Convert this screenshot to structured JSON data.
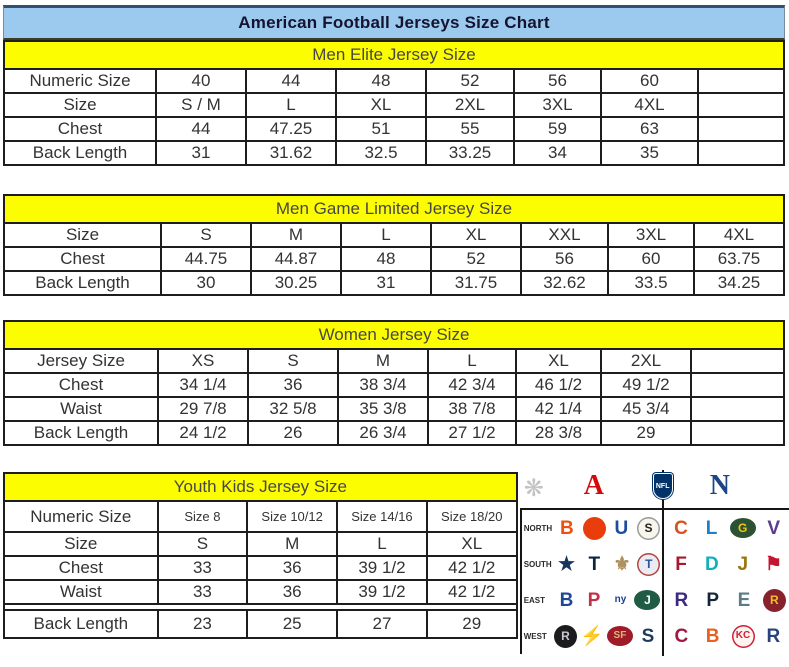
{
  "page": {
    "title": "American Football Jerseys Size Chart"
  },
  "colors": {
    "title_bar_blue": "#9cc9ee",
    "section_header_yellow": "#fdfd02",
    "afc_red": "#d50a0a",
    "nfl_blue": "#013369"
  },
  "tables": [
    {
      "header": "Men Elite Jersey Size",
      "rows": [
        [
          "Numeric Size",
          "40",
          "44",
          "48",
          "52",
          "56",
          "60",
          ""
        ],
        [
          "Size",
          "S / M",
          "L",
          "XL",
          "2XL",
          "3XL",
          "4XL",
          ""
        ],
        [
          "Chest",
          "44",
          "47.25",
          "51",
          "55",
          "59",
          "63",
          ""
        ],
        [
          "Back Length",
          "31",
          "31.62",
          "32.5",
          "33.25",
          "34",
          "35",
          ""
        ]
      ]
    },
    {
      "header": "Men Game Limited Jersey Size",
      "rows": [
        [
          "Size",
          "S",
          "M",
          "L",
          "XL",
          "XXL",
          "3XL",
          "4XL"
        ],
        [
          "Chest",
          "44.75",
          "44.87",
          "48",
          "52",
          "56",
          "60",
          "63.75"
        ],
        [
          "Back Length",
          "30",
          "30.25",
          "31",
          "31.75",
          "32.62",
          "33.5",
          "34.25"
        ]
      ]
    },
    {
      "header": "Women Jersey Size",
      "rows": [
        [
          "Jersey Size",
          "XS",
          "S",
          "M",
          "L",
          "XL",
          "2XL",
          ""
        ],
        [
          "Chest",
          "34 1/4",
          "36",
          "38 3/4",
          "42 3/4",
          "46 1/2",
          "49 1/2",
          ""
        ],
        [
          "Waist",
          "29 7/8",
          "32 5/8",
          "35 3/8",
          "38 7/8",
          "42 1/4",
          "45 3/4",
          ""
        ],
        [
          "Back Length",
          "24 1/2",
          "26",
          "26 3/4",
          "27 1/2",
          "28 3/8",
          "29",
          ""
        ]
      ]
    },
    {
      "header": "Youth Kids Jersey Size",
      "rows": [
        [
          "Numeric Size",
          "Size 8",
          "Size 10/12",
          "Size 14/16",
          "Size 18/20"
        ],
        [
          "Size",
          "S",
          "M",
          "L",
          "XL"
        ],
        [
          "Chest",
          "33",
          "36",
          "39 1/2",
          "42 1/2"
        ],
        [
          "Waist",
          "33",
          "36",
          "39 1/2",
          "42 1/2"
        ],
        [
          "Back Length",
          "23",
          "25",
          "27",
          "29"
        ]
      ]
    }
  ],
  "logo_panel": {
    "conference_header": [
      {
        "name": "starburst-icon",
        "glyph": "❋",
        "shape": "glyph",
        "fg": "#c3c3c3"
      },
      {
        "name": "afc-logo",
        "glyph": "A",
        "shape": "conf",
        "fg": "#d50a0a"
      },
      {
        "name": "nfl-shield-icon",
        "glyph": "NFL",
        "shape": "shield",
        "bg": "#013369",
        "fg": "#ffffff"
      },
      {
        "name": "nfc-logo",
        "glyph": "N",
        "shape": "conf",
        "fg": "#1b4584"
      }
    ],
    "division_rows": [
      {
        "label": "NORTH",
        "afc": [
          {
            "name": "bengals",
            "glyph": "B",
            "shape": "glyph",
            "fg": "#ef5010"
          },
          {
            "name": "browns",
            "glyph": "",
            "shape": "circle",
            "bg": "#ea3d0c",
            "fg": "#ffffff"
          },
          {
            "name": "colts",
            "glyph": "U",
            "shape": "glyph",
            "fg": "#1c4d9c"
          },
          {
            "name": "steelers",
            "glyph": "S",
            "shape": "circle",
            "bg": "#f8f5ec",
            "fg": "#232323",
            "border": "#9a9a9a"
          }
        ],
        "nfc": [
          {
            "name": "bears",
            "glyph": "C",
            "shape": "glyph",
            "fg": "#d65220"
          },
          {
            "name": "lions",
            "glyph": "L",
            "shape": "glyph",
            "fg": "#1d7fc4"
          },
          {
            "name": "packers",
            "glyph": "G",
            "shape": "oval",
            "bg": "#2c5234",
            "fg": "#f2c80f"
          },
          {
            "name": "vikings",
            "glyph": "V",
            "shape": "glyph",
            "fg": "#5a3b8f"
          }
        ]
      },
      {
        "label": "SOUTH",
        "afc": [
          {
            "name": "cowboys",
            "glyph": "★",
            "shape": "glyph",
            "fg": "#16345e"
          },
          {
            "name": "texans",
            "glyph": "T",
            "shape": "glyph",
            "fg": "#0d2440"
          },
          {
            "name": "saints",
            "glyph": "⚜",
            "shape": "glyph",
            "fg": "#ad905a"
          },
          {
            "name": "titans",
            "glyph": "T",
            "shape": "circle",
            "bg": "#e9ecf2",
            "fg": "#29569c",
            "border": "#b8423f"
          }
        ],
        "nfc": [
          {
            "name": "falcons",
            "glyph": "F",
            "shape": "glyph",
            "fg": "#a6192e"
          },
          {
            "name": "dolphins",
            "glyph": "D",
            "shape": "glyph",
            "fg": "#11b0ba"
          },
          {
            "name": "jaguars",
            "glyph": "J",
            "shape": "glyph",
            "fg": "#9a7611"
          },
          {
            "name": "buccaneers",
            "glyph": "⚑",
            "shape": "glyph",
            "fg": "#c41633"
          }
        ]
      },
      {
        "label": "EAST",
        "afc": [
          {
            "name": "bills",
            "glyph": "B",
            "shape": "glyph",
            "fg": "#1f4698"
          },
          {
            "name": "patriots",
            "glyph": "P",
            "shape": "glyph",
            "fg": "#c03248"
          },
          {
            "name": "giants",
            "glyph": "ny",
            "shape": "circle",
            "bg": "#ffffff",
            "fg": "#1b3c8f"
          },
          {
            "name": "jets",
            "glyph": "J",
            "shape": "oval",
            "bg": "#1f5c43",
            "fg": "#ffffff"
          }
        ],
        "nfc": [
          {
            "name": "ravens",
            "glyph": "R",
            "shape": "glyph",
            "fg": "#3a2a80"
          },
          {
            "name": "panthers",
            "glyph": "P",
            "shape": "glyph",
            "fg": "#17253a"
          },
          {
            "name": "eagles",
            "glyph": "E",
            "shape": "glyph",
            "fg": "#5d7b85"
          },
          {
            "name": "redskins",
            "glyph": "R",
            "shape": "circle",
            "bg": "#86222c",
            "fg": "#f6bd27"
          }
        ]
      },
      {
        "label": "WEST",
        "afc": [
          {
            "name": "raiders",
            "glyph": "R",
            "shape": "circle",
            "bg": "#1c1c1e",
            "fg": "#c6cace"
          },
          {
            "name": "chargers",
            "glyph": "⚡",
            "shape": "glyph",
            "fg": "#e8a713"
          },
          {
            "name": "49ers",
            "glyph": "SF",
            "shape": "oval",
            "bg": "#9f1b27",
            "fg": "#d9b778"
          },
          {
            "name": "seahawks",
            "glyph": "S",
            "shape": "glyph",
            "fg": "#1e3a5f"
          }
        ],
        "nfc": [
          {
            "name": "cardinals",
            "glyph": "C",
            "shape": "glyph",
            "fg": "#a31842"
          },
          {
            "name": "broncos",
            "glyph": "B",
            "shape": "glyph",
            "fg": "#e9611c"
          },
          {
            "name": "chiefs",
            "glyph": "KC",
            "shape": "circle",
            "bg": "#fdf4f1",
            "fg": "#cf1f34",
            "border": "#cf1f34"
          },
          {
            "name": "rams",
            "glyph": "R",
            "shape": "glyph",
            "fg": "#28427e"
          }
        ]
      }
    ]
  }
}
